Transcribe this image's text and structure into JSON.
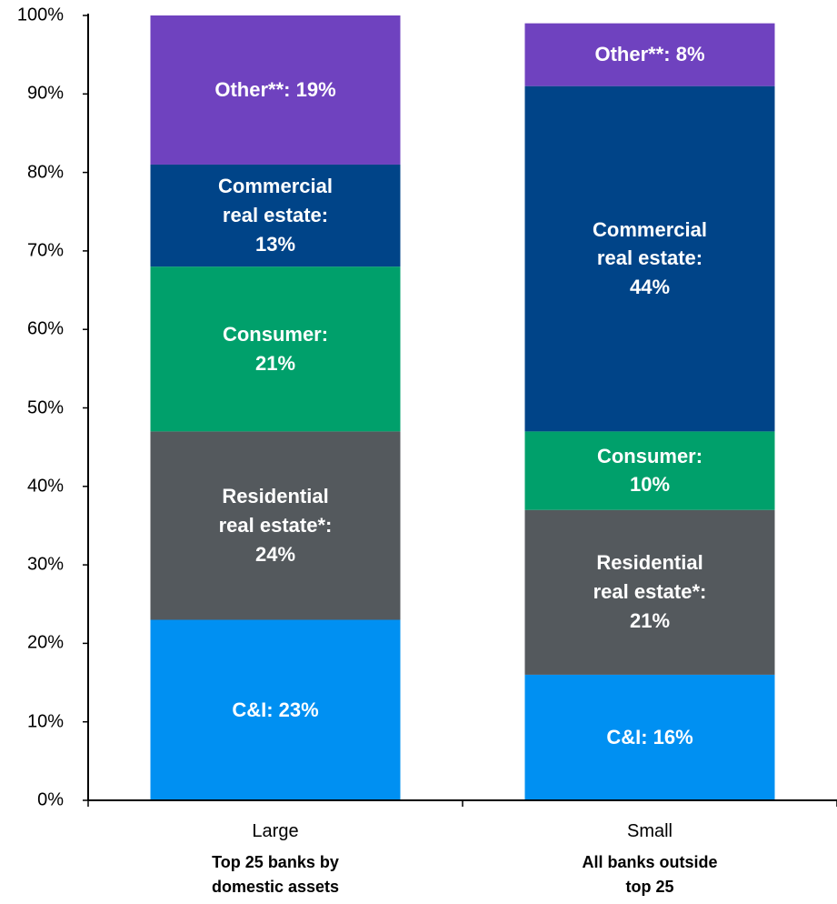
{
  "chart_data": {
    "type": "bar",
    "stacked": true,
    "categories": [
      "Large",
      "Small"
    ],
    "category_subtitles": [
      "Top 25 banks by\ndomestic assets",
      "All banks outside\ntop 25"
    ],
    "series": [
      {
        "name": "C&I",
        "color": "#0090f2",
        "values": [
          23,
          16
        ],
        "value_labels": [
          "C&I: 23%",
          "C&I: 16%"
        ]
      },
      {
        "name": "Residential real estate*",
        "color": "#54595d",
        "values": [
          24,
          21
        ],
        "value_labels": [
          "Residential\nreal estate*:\n24%",
          "Residential\nreal estate*:\n21%"
        ]
      },
      {
        "name": "Consumer",
        "color": "#00a06b",
        "values": [
          21,
          10
        ],
        "value_labels": [
          "Consumer:\n21%",
          "Consumer:\n10%"
        ]
      },
      {
        "name": "Commercial real estate",
        "color": "#004488",
        "values": [
          13,
          44
        ],
        "value_labels": [
          "Commercial\nreal estate:\n13%",
          "Commercial\nreal estate:\n44%"
        ]
      },
      {
        "name": "Other**",
        "color": "#6f42bf",
        "values": [
          19,
          8
        ],
        "value_labels": [
          "Other**: 19%",
          "Other**: 8%"
        ]
      }
    ],
    "ylim": [
      0,
      100
    ],
    "yticks": [
      {
        "value": 0,
        "label": "0%"
      },
      {
        "value": 10,
        "label": "10%"
      },
      {
        "value": 20,
        "label": "20%"
      },
      {
        "value": 30,
        "label": "30%"
      },
      {
        "value": 40,
        "label": "40%"
      },
      {
        "value": 50,
        "label": "50%"
      },
      {
        "value": 60,
        "label": "60%"
      },
      {
        "value": 70,
        "label": "70%"
      },
      {
        "value": 80,
        "label": "80%"
      },
      {
        "value": 90,
        "label": "90%"
      },
      {
        "value": 100,
        "label": "100%"
      }
    ],
    "grid": false
  }
}
